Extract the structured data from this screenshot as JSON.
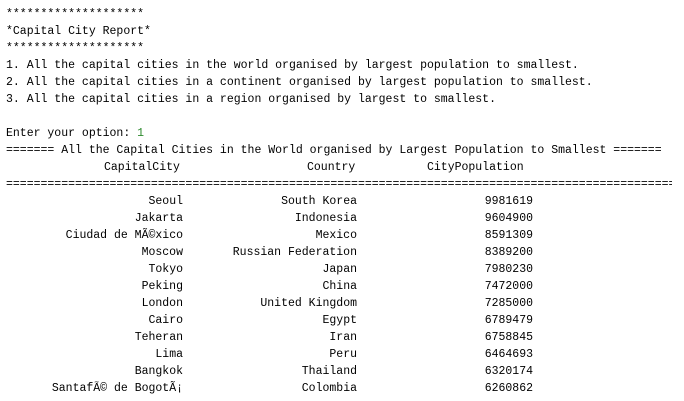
{
  "banner": {
    "stars_top": "********************",
    "title": "*Capital City Report*",
    "stars_bottom": "********************"
  },
  "menu": [
    "1. All the capital cities in the world organised by largest population to smallest.",
    "2. All the capital cities in a continent organised by largest population to smallest.",
    "3. All the capital cities in a region organised by largest to smallest."
  ],
  "prompt": {
    "label": "Enter your option: ",
    "value": "1"
  },
  "report": {
    "heading": "======= All the Capital Cities in the World organised by Largest Population to Smallest =======",
    "columns": [
      "CapitalCity",
      "Country",
      "CityPopulation"
    ],
    "rule": "=====================================================================================================",
    "rows": [
      [
        "Seoul",
        "South Korea",
        "9981619"
      ],
      [
        "Jakarta",
        "Indonesia",
        "9604900"
      ],
      [
        "Ciudad de MÃ©xico",
        "Mexico",
        "8591309"
      ],
      [
        "Moscow",
        "Russian Federation",
        "8389200"
      ],
      [
        "Tokyo",
        "Japan",
        "7980230"
      ],
      [
        "Peking",
        "China",
        "7472000"
      ],
      [
        "London",
        "United Kingdom",
        "7285000"
      ],
      [
        "Cairo",
        "Egypt",
        "6789479"
      ],
      [
        "Teheran",
        "Iran",
        "6758845"
      ],
      [
        "Lima",
        "Peru",
        "6464693"
      ],
      [
        "Bangkok",
        "Thailand",
        "6320174"
      ],
      [
        "SantafÃ© de BogotÃ¡",
        "Colombia",
        "6260862"
      ]
    ]
  }
}
